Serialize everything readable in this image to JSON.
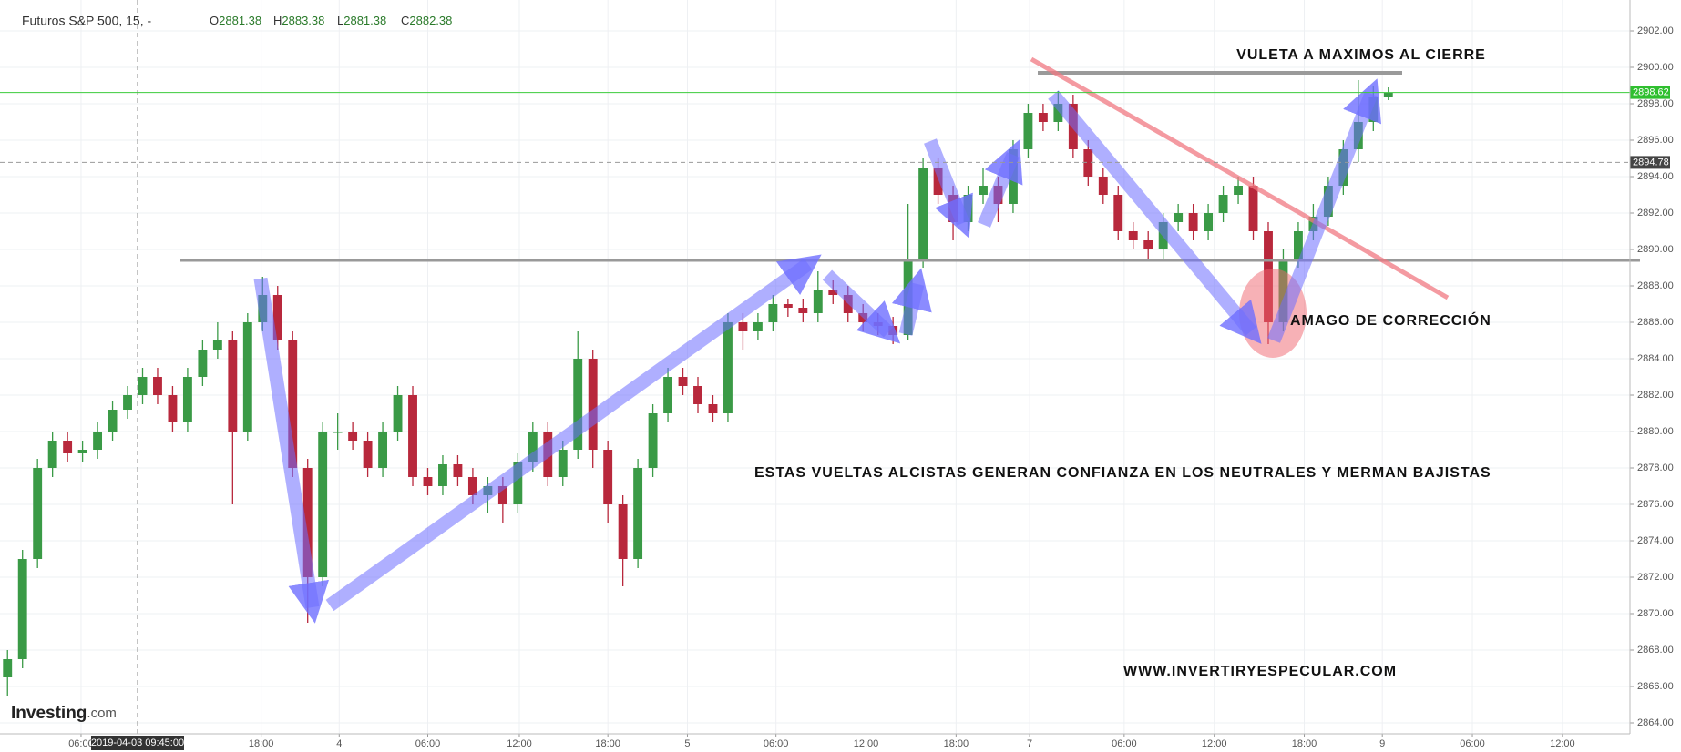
{
  "chart_data": {
    "type": "candlestick",
    "title": "Futuros S&P 500, 15, -",
    "ohlc_header": [
      {
        "label": "O",
        "value": 2881.38
      },
      {
        "label": "H",
        "value": 2883.38
      },
      {
        "label": "L",
        "value": 2881.38
      },
      {
        "label": "C",
        "value": 2882.38
      }
    ],
    "logo": {
      "main": "Investing",
      "suffix": ".com"
    },
    "crosshair_label": "2019-04-03 09:45:00",
    "annotations": [
      "VULETA A MAXIMOS AL CIERRE",
      "AMAGO DE CORRECCIÓN",
      "ESTAS VUELTAS ALCISTAS GENERAN CONFIANZA EN LOS NEUTRALES Y MERMAN BAJISTAS",
      "WWW.INVERTIRYESPECULAR.COM"
    ],
    "up_color": "#3a9a46",
    "down_color": "#b8283c",
    "grid": true,
    "last_price": 2898.62,
    "reference_price": 2894.78,
    "x": [
      0.5,
      1.5,
      2.5,
      3.5,
      4.5,
      5.5,
      6.5,
      7.5,
      8.5,
      9.5,
      10.5,
      11.5,
      12.5,
      13.5,
      14.5,
      15.5,
      16.5,
      17.5,
      18.5,
      19.5,
      20.5,
      21.5,
      22.5,
      23.5,
      24.5,
      25.5,
      26.5,
      27.5,
      28.5,
      29.5,
      30.5,
      31.5,
      32.5,
      33.5,
      34.5,
      35.5,
      36.5,
      37.5,
      38.5,
      39.5,
      40.5,
      41.5,
      42.5,
      43.5,
      44.5,
      45.5,
      46.5,
      47.5,
      48.5,
      49.5,
      50.5,
      51.5,
      52.5,
      53.5,
      54.5,
      55.5,
      56.5,
      57.5,
      58.5,
      59.5,
      60.5,
      61.5,
      62.5,
      63.5,
      64.5,
      65.5,
      66.5,
      67.5,
      68.5,
      69.5,
      70.5,
      71.5,
      72.5,
      73.5,
      74.5,
      75.5,
      76.5,
      77.5,
      78.5,
      79.5,
      80.5,
      81.5,
      82.5,
      83.5,
      84.5,
      85.5,
      86.5,
      87.5,
      88.5,
      89.5,
      90.5,
      91.5,
      92.5
    ],
    "open": [
      2866.5,
      2867.5,
      2873,
      2878,
      2879.5,
      2878.8,
      2879,
      2880,
      2881.2,
      2882,
      2883,
      2882,
      2880.5,
      2883,
      2884.5,
      2885,
      2880,
      2886,
      2887.5,
      2885,
      2878,
      2872,
      2880,
      2880,
      2879.5,
      2878,
      2880,
      2882,
      2877.5,
      2877,
      2878.2,
      2877.5,
      2876.5,
      2877,
      2876,
      2878.3,
      2880,
      2877.5,
      2879,
      2884,
      2879,
      2876,
      2873,
      2878,
      2881,
      2883,
      2882.5,
      2881.5,
      2881,
      2886,
      2885.5,
      2886,
      2887,
      2886.8,
      2886.5,
      2887.8,
      2887.5,
      2886.5,
      2886,
      2885.8,
      2885.3,
      2889.5,
      2894.5,
      2893,
      2891.5,
      2893,
      2893.5,
      2892.5,
      2895.5,
      2897.5,
      2897,
      2898,
      2895.5,
      2894,
      2893,
      2891,
      2890.5,
      2890,
      2891.5,
      2892,
      2891,
      2892,
      2893,
      2893.5,
      2891,
      2886,
      2889.5,
      2891,
      2891.8,
      2893.5,
      2895.5,
      2897,
      2898.4
    ],
    "high": [
      2868,
      2873.5,
      2878.5,
      2880,
      2880,
      2879.5,
      2880.5,
      2881.7,
      2882.5,
      2883.5,
      2883.5,
      2882.5,
      2883.5,
      2885,
      2886,
      2885.5,
      2886.5,
      2888.5,
      2888,
      2885.5,
      2878.5,
      2880.5,
      2881,
      2880.5,
      2880,
      2880.5,
      2882.5,
      2882.5,
      2878,
      2878.7,
      2878.7,
      2878,
      2877.5,
      2877.5,
      2878.8,
      2880.5,
      2880.5,
      2879.5,
      2885.5,
      2884.5,
      2879.5,
      2876.5,
      2878.5,
      2881.5,
      2883.5,
      2883.5,
      2883,
      2882,
      2886.5,
      2886.5,
      2886.5,
      2887.5,
      2887.3,
      2887.3,
      2888.8,
      2888.3,
      2888,
      2887,
      2886.5,
      2886.3,
      2892.5,
      2895,
      2895,
      2893.5,
      2893.5,
      2894.5,
      2894,
      2896,
      2898,
      2898,
      2898.7,
      2898.5,
      2896,
      2894.5,
      2893.5,
      2891.5,
      2891,
      2892,
      2892.5,
      2892.5,
      2892.5,
      2893.5,
      2894,
      2894,
      2891.5,
      2890,
      2891.5,
      2892.5,
      2894,
      2896,
      2899.3,
      2899,
      2898.9
    ],
    "low": [
      2865.5,
      2867,
      2872.5,
      2877.5,
      2878.3,
      2878.3,
      2878.5,
      2879.5,
      2880.7,
      2881.5,
      2881.5,
      2880,
      2880,
      2882.5,
      2884,
      2876,
      2879.5,
      2885.5,
      2884.5,
      2877.5,
      2869.5,
      2871.5,
      2879,
      2879,
      2877.5,
      2877.5,
      2879.5,
      2877,
      2876.5,
      2876.5,
      2877,
      2876,
      2875.5,
      2875,
      2875.5,
      2877.8,
      2877,
      2877,
      2878.5,
      2878,
      2875,
      2871.5,
      2872.5,
      2877.5,
      2880.5,
      2882,
      2881,
      2880.5,
      2880.5,
      2884.5,
      2885,
      2885.5,
      2886.3,
      2886,
      2886,
      2887,
      2886,
      2885.5,
      2885.3,
      2884.8,
      2885,
      2889,
      2892.5,
      2890.5,
      2891,
      2892.5,
      2891.5,
      2892,
      2895,
      2896.5,
      2896.5,
      2895,
      2893.5,
      2892.5,
      2890.5,
      2890,
      2889.5,
      2889.5,
      2891,
      2890.5,
      2890.5,
      2891.5,
      2892.5,
      2890.5,
      2884.8,
      2885.5,
      2889,
      2890.5,
      2891.3,
      2893,
      2894.8,
      2896.5,
      2898.2
    ],
    "close": [
      2867.5,
      2873,
      2878,
      2879.5,
      2878.8,
      2879,
      2880,
      2881.2,
      2882,
      2883,
      2882,
      2880.5,
      2883,
      2884.5,
      2885,
      2880,
      2886,
      2887.5,
      2885,
      2878,
      2872,
      2880,
      2880,
      2879.5,
      2878,
      2880,
      2882,
      2877.5,
      2877,
      2878.2,
      2877.5,
      2876.5,
      2877,
      2876,
      2878.3,
      2880,
      2877.5,
      2879,
      2884,
      2879,
      2876,
      2873,
      2878,
      2881,
      2883,
      2882.5,
      2881.5,
      2881,
      2886,
      2885.5,
      2886,
      2887,
      2886.8,
      2886.5,
      2887.8,
      2887.5,
      2886.5,
      2886,
      2885.8,
      2885.3,
      2889.5,
      2894.5,
      2893,
      2891.5,
      2893,
      2893.5,
      2892.5,
      2895.5,
      2897.5,
      2897,
      2898,
      2895.5,
      2894,
      2893,
      2891,
      2890.5,
      2890,
      2891.5,
      2892,
      2891,
      2892,
      2893,
      2893.5,
      2891,
      2886,
      2889.5,
      2891,
      2891.8,
      2893.5,
      2895.5,
      2897,
      2898.4,
      2898.62
    ],
    "xlim": [
      0,
      108.6
    ],
    "xticks": [
      {
        "value": 5.4,
        "label": "06:00"
      },
      {
        "value": 17.4,
        "label": "18:00"
      },
      {
        "value": 22.6,
        "label": "4"
      },
      {
        "value": 28.5,
        "label": "06:00"
      },
      {
        "value": 34.6,
        "label": "12:00"
      },
      {
        "value": 40.5,
        "label": "18:00"
      },
      {
        "value": 45.8,
        "label": "5"
      },
      {
        "value": 51.7,
        "label": "06:00"
      },
      {
        "value": 57.7,
        "label": "12:00"
      },
      {
        "value": 63.7,
        "label": "18:00"
      },
      {
        "value": 68.6,
        "label": "7"
      },
      {
        "value": 74.9,
        "label": "06:00"
      },
      {
        "value": 80.9,
        "label": "12:00"
      },
      {
        "value": 86.9,
        "label": "18:00"
      },
      {
        "value": 92.1,
        "label": "9"
      },
      {
        "value": 98.1,
        "label": "06:00"
      },
      {
        "value": 104.1,
        "label": "12:00"
      }
    ],
    "ylim": [
      2863.4,
      2903.7
    ],
    "yticks": [
      {
        "value": 2864,
        "label": "2864.00"
      },
      {
        "value": 2866,
        "label": "2866.00"
      },
      {
        "value": 2868,
        "label": "2868.00"
      },
      {
        "value": 2870,
        "label": "2870.00"
      },
      {
        "value": 2872,
        "label": "2872.00"
      },
      {
        "value": 2874,
        "label": "2874.00"
      },
      {
        "value": 2876,
        "label": "2876.00"
      },
      {
        "value": 2878,
        "label": "2878.00"
      },
      {
        "value": 2880,
        "label": "2880.00"
      },
      {
        "value": 2882,
        "label": "2882.00"
      },
      {
        "value": 2884,
        "label": "2884.00"
      },
      {
        "value": 2886,
        "label": "2886.00"
      },
      {
        "value": 2888,
        "label": "2888.00"
      },
      {
        "value": 2890,
        "label": "2890.00"
      },
      {
        "value": 2892,
        "label": "2892.00"
      },
      {
        "value": 2894,
        "label": "2894.00"
      },
      {
        "value": 2896,
        "label": "2896.00"
      },
      {
        "value": 2898,
        "label": "2898.00"
      },
      {
        "value": 2900,
        "label": "2900.00"
      },
      {
        "value": 2902,
        "label": "2902.00"
      }
    ]
  }
}
